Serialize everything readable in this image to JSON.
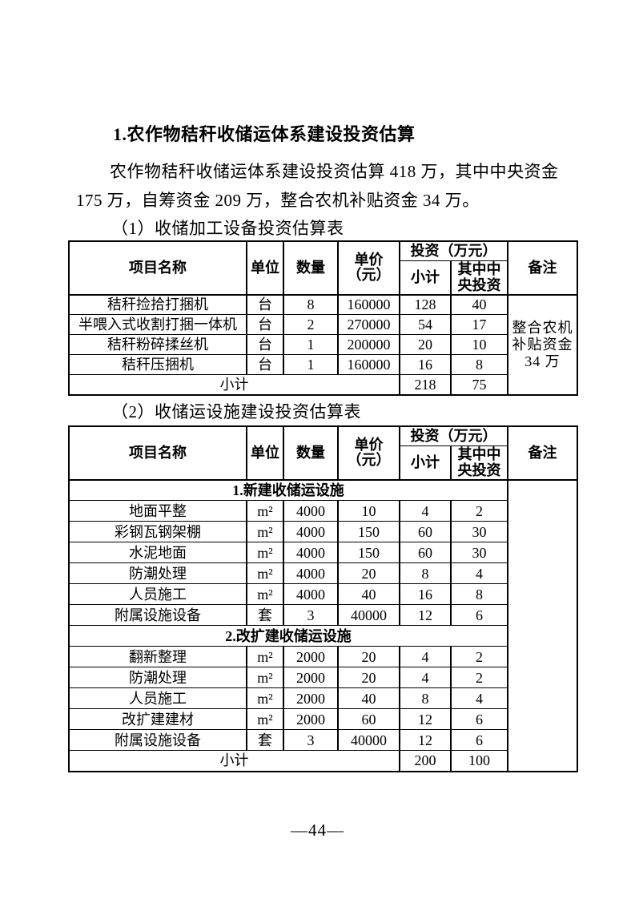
{
  "page": {
    "heading": "1.农作物秸秆收储运体系建设投资估算",
    "paragraph": {
      "line1": "农作物秸秆收储运体系建设投资估算 418 万，其中中央资金",
      "line2": "175 万，自筹资金 209 万，整合农机补贴资金 34 万。"
    },
    "page_number": "—44—"
  },
  "table1": {
    "caption": "（1）收储加工设备投资估算表",
    "headers": {
      "name": "项目名称",
      "unit": "单位",
      "qty": "数量",
      "price_top": "单价",
      "price_bottom": "（元）",
      "investment": "投资（万元）",
      "subtotal": "小计",
      "central": "其中中央投资",
      "remark": "备注"
    },
    "rows": [
      {
        "name": "秸秆捡拾打捆机",
        "unit": "台",
        "qty": "8",
        "price": "160000",
        "subtotal": "128",
        "central": "40"
      },
      {
        "name": "半喂入式收割打捆一体机",
        "unit": "台",
        "qty": "2",
        "price": "270000",
        "subtotal": "54",
        "central": "17"
      },
      {
        "name": "秸秆粉碎揉丝机",
        "unit": "台",
        "qty": "1",
        "price": "200000",
        "subtotal": "20",
        "central": "10"
      },
      {
        "name": "秸秆压捆机",
        "unit": "台",
        "qty": "1",
        "price": "160000",
        "subtotal": "16",
        "central": "8"
      },
      {
        "type": "subtotal",
        "name": "小计",
        "subtotal": "218",
        "central": "75"
      }
    ],
    "remark": "整合农机补贴资金 34 万"
  },
  "table2": {
    "caption": "（2）收储运设施建设投资估算表",
    "headers": {
      "name": "项目名称",
      "unit": "单位",
      "qty": "数量",
      "price_top": "单价",
      "price_bottom": "（元）",
      "investment": "投资（万元）",
      "subtotal": "小计",
      "central": "其中中央投资",
      "remark": "备注"
    },
    "rows": [
      {
        "type": "section",
        "name": "1.新建收储运设施"
      },
      {
        "name": "地面平整",
        "unit": "m²",
        "qty": "4000",
        "price": "10",
        "subtotal": "4",
        "central": "2"
      },
      {
        "name": "彩钢瓦钢架棚",
        "unit": "m²",
        "qty": "4000",
        "price": "150",
        "subtotal": "60",
        "central": "30"
      },
      {
        "name": "水泥地面",
        "unit": "m²",
        "qty": "4000",
        "price": "150",
        "subtotal": "60",
        "central": "30"
      },
      {
        "name": "防潮处理",
        "unit": "m²",
        "qty": "4000",
        "price": "20",
        "subtotal": "8",
        "central": "4"
      },
      {
        "name": "人员施工",
        "unit": "m²",
        "qty": "4000",
        "price": "40",
        "subtotal": "16",
        "central": "8"
      },
      {
        "name": "附属设施设备",
        "unit": "套",
        "qty": "3",
        "price": "40000",
        "subtotal": "12",
        "central": "6"
      },
      {
        "type": "section",
        "name": "2.改扩建收储运设施"
      },
      {
        "name": "翻新整理",
        "unit": "m²",
        "qty": "2000",
        "price": "20",
        "subtotal": "4",
        "central": "2"
      },
      {
        "name": "防潮处理",
        "unit": "m²",
        "qty": "2000",
        "price": "20",
        "subtotal": "4",
        "central": "2"
      },
      {
        "name": "人员施工",
        "unit": "m²",
        "qty": "2000",
        "price": "40",
        "subtotal": "8",
        "central": "4"
      },
      {
        "name": "改扩建建材",
        "unit": "m²",
        "qty": "2000",
        "price": "60",
        "subtotal": "12",
        "central": "6"
      },
      {
        "name": "附属设施设备",
        "unit": "套",
        "qty": "3",
        "price": "40000",
        "subtotal": "12",
        "central": "6"
      },
      {
        "type": "subtotal",
        "name": "小计",
        "subtotal": "200",
        "central": "100"
      }
    ],
    "remark": ""
  }
}
